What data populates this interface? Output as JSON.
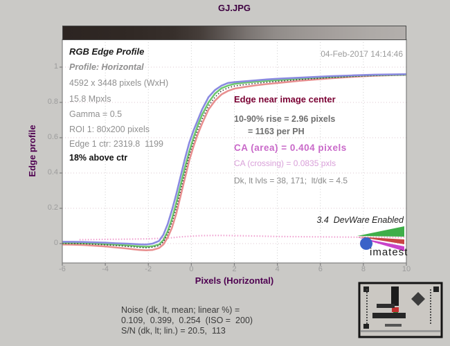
{
  "window": {
    "title": "GJ.JPG",
    "timestamp": "04-Feb-2017 14:14:46"
  },
  "panel_left": {
    "heading": "RGB Edge Profile",
    "subheading": "Profile: Horizontal",
    "lines": [
      "4592 x 3448 pixels (WxH)",
      "15.8 Mpxls",
      "Gamma = 0.5",
      "ROI 1: 80x200 pixels",
      "Edge 1 ctr: 2319.8  1199"
    ],
    "emphasis": "18% above ctr"
  },
  "panel_right": {
    "heading": "Edge near image center",
    "rise_line1": "10-90% rise = 2.96 pixels",
    "rise_line2": "= 1163 per PH",
    "ca_area": "CA (area) = 0.404 pixels",
    "ca_crossing": "CA (crossing) = 0.0835 pxls",
    "levels": "Dk, lt lvls = 38, 171;  lt/dk = 4.5"
  },
  "branding": {
    "version_note": "3.4  DevWare Enabled",
    "logo_text": "imatest"
  },
  "footer": {
    "noise_line1": "Noise (dk, lt, mean; linear %) =",
    "noise_line2": "0.109,  0.399,  0.254  (ISO =  200)",
    "noise_line3": "S/N (dk, lt; lin.) = 20.5,  113"
  },
  "colors": {
    "figure_background": "#cac9c6",
    "plot_background": "#ffffff",
    "title_text": "#3d0040",
    "axis_label_text": "#4e0050",
    "right_heading_text": "#7a0033",
    "ca_area_text": "#c969c9",
    "ca_crossing_text": "#d9a0d9",
    "tonebar_left": "#2c2421",
    "tonebar_right": "#b3afac"
  },
  "chart_data": {
    "type": "line",
    "title": "GJ.JPG",
    "xlabel": "Pixels (Horizontal)",
    "ylabel": "Edge profile",
    "xlim": [
      -6,
      10
    ],
    "ylim": [
      -0.11,
      1.157
    ],
    "xticks": [
      -6,
      -4,
      -2,
      0,
      2,
      4,
      6,
      8,
      10
    ],
    "yticks": [
      0,
      0.2,
      0.4,
      0.6,
      0.8,
      1
    ],
    "grid": true,
    "legend_position": "none",
    "x": [
      -6,
      -5.5,
      -5,
      -4.5,
      -4,
      -3.5,
      -3,
      -2.7,
      -2.4,
      -2.1,
      -1.8,
      -1.5,
      -1.3,
      -1.1,
      -0.9,
      -0.7,
      -0.5,
      -0.3,
      -0.1,
      0.1,
      0.3,
      0.5,
      0.8,
      1.1,
      1.4,
      1.7,
      2,
      2.5,
      3,
      3.5,
      4,
      4.5,
      5,
      5.5,
      6,
      6.5,
      7,
      7.5,
      8,
      8.5,
      9,
      9.5,
      10
    ],
    "series": [
      {
        "name": "red-channel",
        "color": "#e89090",
        "style": "solid",
        "values": [
          -0.005,
          -0.006,
          -0.008,
          -0.012,
          -0.016,
          -0.022,
          -0.028,
          -0.032,
          -0.036,
          -0.038,
          -0.036,
          -0.025,
          -0.005,
          0.035,
          0.09,
          0.17,
          0.27,
          0.37,
          0.47,
          0.55,
          0.62,
          0.68,
          0.76,
          0.81,
          0.845,
          0.865,
          0.878,
          0.888,
          0.897,
          0.904,
          0.91,
          0.916,
          0.922,
          0.927,
          0.932,
          0.937,
          0.941,
          0.945,
          0.948,
          0.951,
          0.953,
          0.955,
          0.956
        ]
      },
      {
        "name": "green-channel",
        "color": "#6ec86e",
        "style": "solid",
        "values": [
          0.003,
          0.003,
          0.002,
          0.0,
          -0.003,
          -0.006,
          -0.01,
          -0.013,
          -0.016,
          -0.018,
          -0.015,
          -0.005,
          0.02,
          0.07,
          0.14,
          0.23,
          0.33,
          0.43,
          0.52,
          0.6,
          0.67,
          0.73,
          0.8,
          0.85,
          0.88,
          0.895,
          0.905,
          0.912,
          0.918,
          0.922,
          0.926,
          0.93,
          0.934,
          0.938,
          0.941,
          0.944,
          0.947,
          0.95,
          0.952,
          0.954,
          0.955,
          0.956,
          0.957
        ]
      },
      {
        "name": "luminance-channel",
        "color": "#333333",
        "style": "dotted",
        "values": [
          0.0,
          0.0,
          -0.001,
          -0.004,
          -0.007,
          -0.011,
          -0.016,
          -0.019,
          -0.022,
          -0.024,
          -0.021,
          -0.012,
          0.01,
          0.055,
          0.12,
          0.2,
          0.3,
          0.4,
          0.5,
          0.575,
          0.645,
          0.705,
          0.78,
          0.83,
          0.865,
          0.882,
          0.893,
          0.901,
          0.908,
          0.914,
          0.919,
          0.924,
          0.929,
          0.933,
          0.937,
          0.941,
          0.944,
          0.947,
          0.95,
          0.952,
          0.954,
          0.955,
          0.956
        ]
      },
      {
        "name": "blue-channel",
        "color": "#8a8ae0",
        "style": "solid",
        "values": [
          0.01,
          0.01,
          0.009,
          0.007,
          0.005,
          0.002,
          0.0,
          -0.002,
          -0.004,
          -0.005,
          0.0,
          0.015,
          0.05,
          0.11,
          0.19,
          0.28,
          0.38,
          0.48,
          0.57,
          0.64,
          0.7,
          0.76,
          0.83,
          0.87,
          0.895,
          0.91,
          0.915,
          0.92,
          0.925,
          0.93,
          0.934,
          0.937,
          0.94,
          0.943,
          0.946,
          0.949,
          0.951,
          0.953,
          0.955,
          0.957,
          0.958,
          0.959,
          0.96
        ]
      }
    ],
    "ca_line": {
      "name": "ca-area-dotted",
      "color": "#f0a0d0",
      "style": "dotted",
      "x": [
        -5.2,
        -4,
        -3,
        -2,
        -1,
        -0.5,
        0,
        0.5,
        1,
        1.5,
        2,
        3,
        4,
        5,
        6,
        7,
        8,
        9,
        10
      ],
      "values": [
        0.022,
        0.024,
        0.025,
        0.027,
        0.032,
        0.038,
        0.042,
        0.045,
        0.046,
        0.046,
        0.045,
        0.043,
        0.04,
        0.039,
        0.038,
        0.037,
        0.036,
        0.036,
        0.035
      ]
    }
  }
}
